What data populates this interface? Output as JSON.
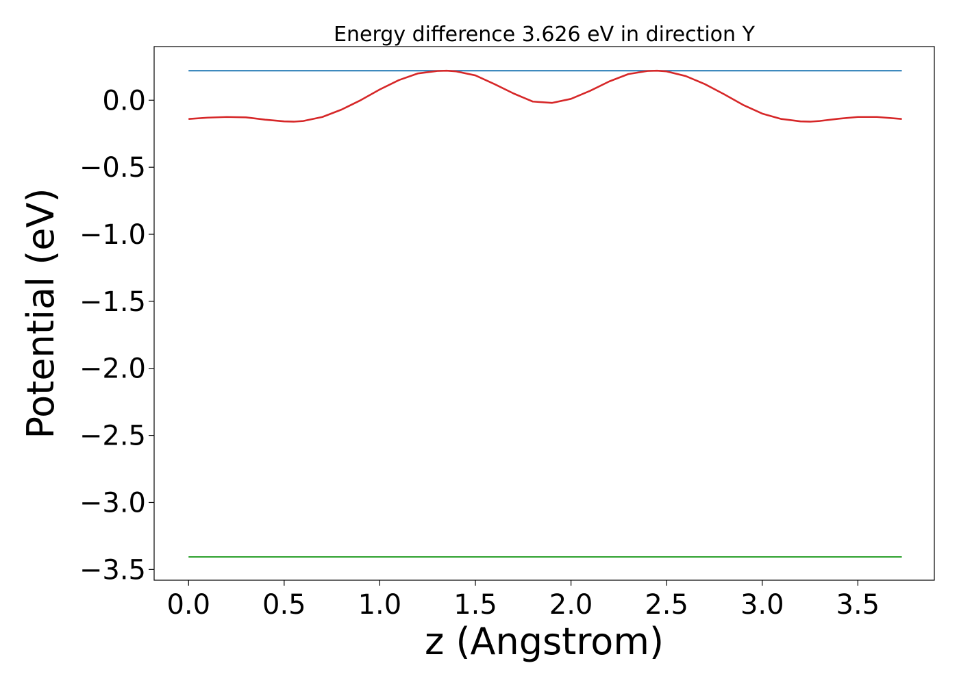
{
  "chart_data": {
    "type": "line",
    "title": "Energy difference 3.626 eV in direction Y",
    "xlabel": "z (Angstrom)",
    "ylabel": "Potential (eV)",
    "xlim": [
      -0.18,
      3.9
    ],
    "ylim": [
      -3.58,
      0.4
    ],
    "xticks": [
      0.0,
      0.5,
      1.0,
      1.5,
      2.0,
      2.5,
      3.0,
      3.5
    ],
    "xtick_labels": [
      "0.0",
      "0.5",
      "1.0",
      "1.5",
      "2.0",
      "2.5",
      "3.0",
      "3.5"
    ],
    "yticks": [
      0.0,
      -0.5,
      -1.0,
      -1.5,
      -2.0,
      -2.5,
      -3.0,
      -3.5
    ],
    "ytick_labels": [
      "0.0",
      "−0.5",
      "−1.0",
      "−1.5",
      "−2.0",
      "−2.5",
      "−3.0",
      "−3.5"
    ],
    "grid": false,
    "legend": "none",
    "series": [
      {
        "color": "#1f77b4",
        "x": [
          0.0,
          3.73
        ],
        "y": [
          0.22,
          0.22
        ]
      },
      {
        "color": "#d62728",
        "x": [
          0.0,
          0.1,
          0.2,
          0.3,
          0.4,
          0.5,
          0.55,
          0.6,
          0.7,
          0.8,
          0.9,
          1.0,
          1.1,
          1.2,
          1.3,
          1.35,
          1.4,
          1.5,
          1.6,
          1.7,
          1.8,
          1.9,
          2.0,
          2.1,
          2.2,
          2.3,
          2.4,
          2.45,
          2.5,
          2.6,
          2.7,
          2.8,
          2.9,
          3.0,
          3.1,
          3.2,
          3.25,
          3.3,
          3.4,
          3.5,
          3.6,
          3.73
        ],
        "y": [
          -0.14,
          -0.13,
          -0.125,
          -0.128,
          -0.145,
          -0.158,
          -0.16,
          -0.155,
          -0.125,
          -0.07,
          0.0,
          0.08,
          0.15,
          0.2,
          0.218,
          0.22,
          0.215,
          0.185,
          0.12,
          0.05,
          -0.01,
          -0.02,
          0.01,
          0.07,
          0.14,
          0.195,
          0.218,
          0.22,
          0.215,
          0.18,
          0.12,
          0.045,
          -0.035,
          -0.1,
          -0.14,
          -0.158,
          -0.16,
          -0.155,
          -0.138,
          -0.125,
          -0.125,
          -0.14
        ]
      },
      {
        "color": "#2ca02c",
        "x": [
          0.0,
          3.73
        ],
        "y": [
          -3.406,
          -3.406
        ]
      }
    ]
  }
}
